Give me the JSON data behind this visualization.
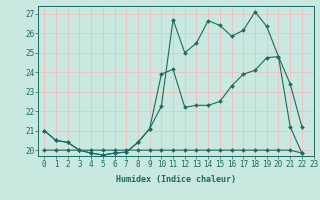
{
  "title": "",
  "xlabel": "Humidex (Indice chaleur)",
  "ylabel": "",
  "bg_color": "#c8e8e0",
  "line_color": "#1a6b60",
  "grid_color": "#f0c0c0",
  "xlim": [
    -0.5,
    23
  ],
  "ylim": [
    19.7,
    27.4
  ],
  "yticks": [
    20,
    21,
    22,
    23,
    24,
    25,
    26,
    27
  ],
  "xticks": [
    0,
    1,
    2,
    3,
    4,
    5,
    6,
    7,
    8,
    9,
    10,
    11,
    12,
    13,
    14,
    15,
    16,
    17,
    18,
    19,
    20,
    21,
    22,
    23
  ],
  "series1_x": [
    0,
    1,
    2,
    3,
    4,
    5,
    6,
    7,
    8,
    9,
    10,
    11,
    12,
    13,
    14,
    15,
    16,
    17,
    18,
    19,
    20,
    21,
    22
  ],
  "series1_y": [
    21.0,
    20.5,
    20.4,
    20.0,
    19.85,
    19.75,
    19.85,
    19.9,
    20.4,
    21.1,
    22.25,
    26.7,
    25.0,
    25.5,
    26.65,
    26.4,
    25.85,
    26.15,
    27.1,
    26.35,
    24.8,
    21.2,
    19.85
  ],
  "series2_x": [
    0,
    1,
    2,
    3,
    4,
    5,
    6,
    7,
    8,
    9,
    10,
    11,
    12,
    13,
    14,
    15,
    16,
    17,
    18,
    19,
    20,
    21,
    22
  ],
  "series2_y": [
    21.0,
    20.5,
    20.4,
    20.0,
    19.85,
    19.75,
    19.85,
    19.9,
    20.4,
    21.1,
    23.9,
    24.15,
    22.2,
    22.3,
    22.3,
    22.5,
    23.3,
    23.9,
    24.1,
    24.75,
    24.8,
    23.4,
    21.2
  ],
  "series3_x": [
    0,
    1,
    2,
    3,
    4,
    5,
    6,
    7,
    8,
    9,
    10,
    11,
    12,
    13,
    14,
    15,
    16,
    17,
    18,
    19,
    20,
    21,
    22
  ],
  "series3_y": [
    20.0,
    20.0,
    20.0,
    20.0,
    20.0,
    20.0,
    20.0,
    20.0,
    20.0,
    20.0,
    20.0,
    20.0,
    20.0,
    20.0,
    20.0,
    20.0,
    20.0,
    20.0,
    20.0,
    20.0,
    20.0,
    20.0,
    19.85
  ],
  "tick_fontsize": 5.5,
  "xlabel_fontsize": 6.0,
  "marker_size": 2.0,
  "linewidth": 0.8
}
